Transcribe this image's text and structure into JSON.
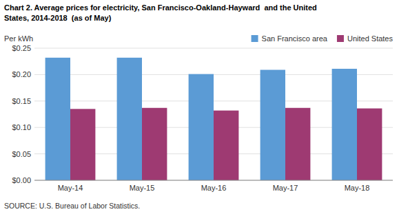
{
  "chart_data": {
    "type": "bar",
    "title": "Chart 2. Average prices for electricity, San Francisco-Oakland-Hayward  and the United",
    "subtitle": "States, 2014-2018  (as of May)",
    "y_label": "Per kWh",
    "annotations": [
      "SOURCE: U.S. Bureau of Labor Statistics."
    ],
    "categories": [
      "May-14",
      "May-15",
      "May-16",
      "May-17",
      "May-18"
    ],
    "series": [
      {
        "name": "San Francisco area",
        "color": "#5B9BD5",
        "values": [
          0.232,
          0.232,
          0.201,
          0.209,
          0.211
        ]
      },
      {
        "name": "United States",
        "color": "#9E3A72",
        "values": [
          0.135,
          0.137,
          0.132,
          0.137,
          0.136
        ]
      }
    ],
    "ylim": [
      0,
      0.25
    ],
    "yticks": [
      {
        "value": 0.0,
        "label": "$0.00"
      },
      {
        "value": 0.05,
        "label": "$0.05"
      },
      {
        "value": 0.1,
        "label": "$0.10"
      },
      {
        "value": 0.15,
        "label": "$0.15"
      },
      {
        "value": 0.2,
        "label": "$0.20"
      },
      {
        "value": 0.25,
        "label": "$0.25"
      }
    ],
    "grid": true,
    "legend": "upper right"
  }
}
